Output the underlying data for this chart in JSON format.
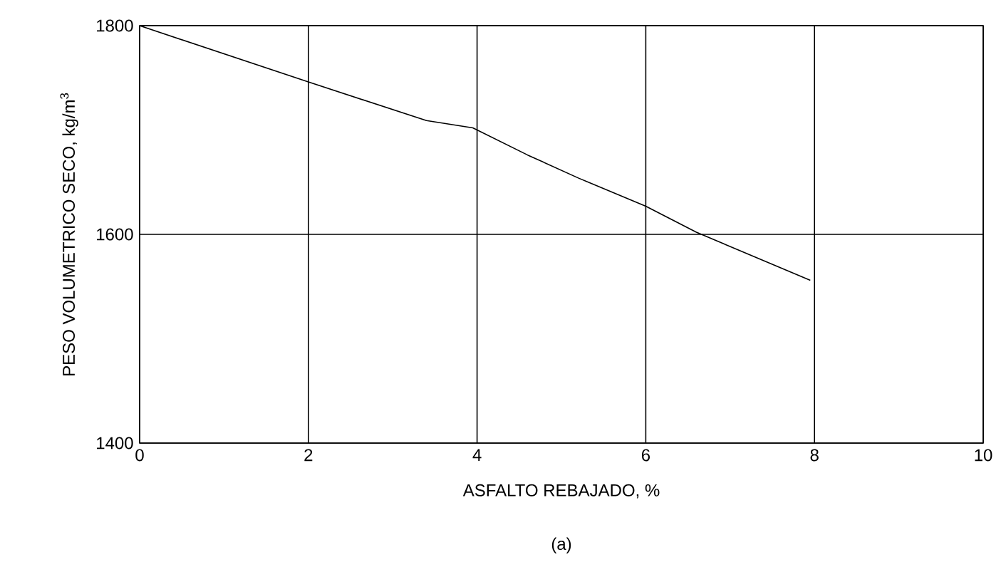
{
  "chart_data": {
    "type": "line",
    "xlabel": "ASFALTO REBAJADO, %",
    "ylabel": "PESO VOLUMETRICO SECO, kg/m$^{3}$",
    "annotations": [
      "(a)"
    ],
    "x": [
      0,
      2,
      3.4,
      3.95,
      4.6,
      5.2,
      6,
      6.6,
      7.95
    ],
    "series": [
      {
        "color": "#000000",
        "values": [
          1800,
          1746,
          1709,
          1702,
          1676,
          1654,
          1627,
          1602,
          1556
        ]
      }
    ],
    "xlim": [
      0,
      10
    ],
    "ylim": [
      1400,
      1800
    ],
    "xticks": [
      0,
      2,
      4,
      6,
      8,
      10
    ],
    "yticks": [
      1400,
      1600,
      1800
    ],
    "grid": true,
    "marker": "none",
    "line_style": "solid"
  }
}
